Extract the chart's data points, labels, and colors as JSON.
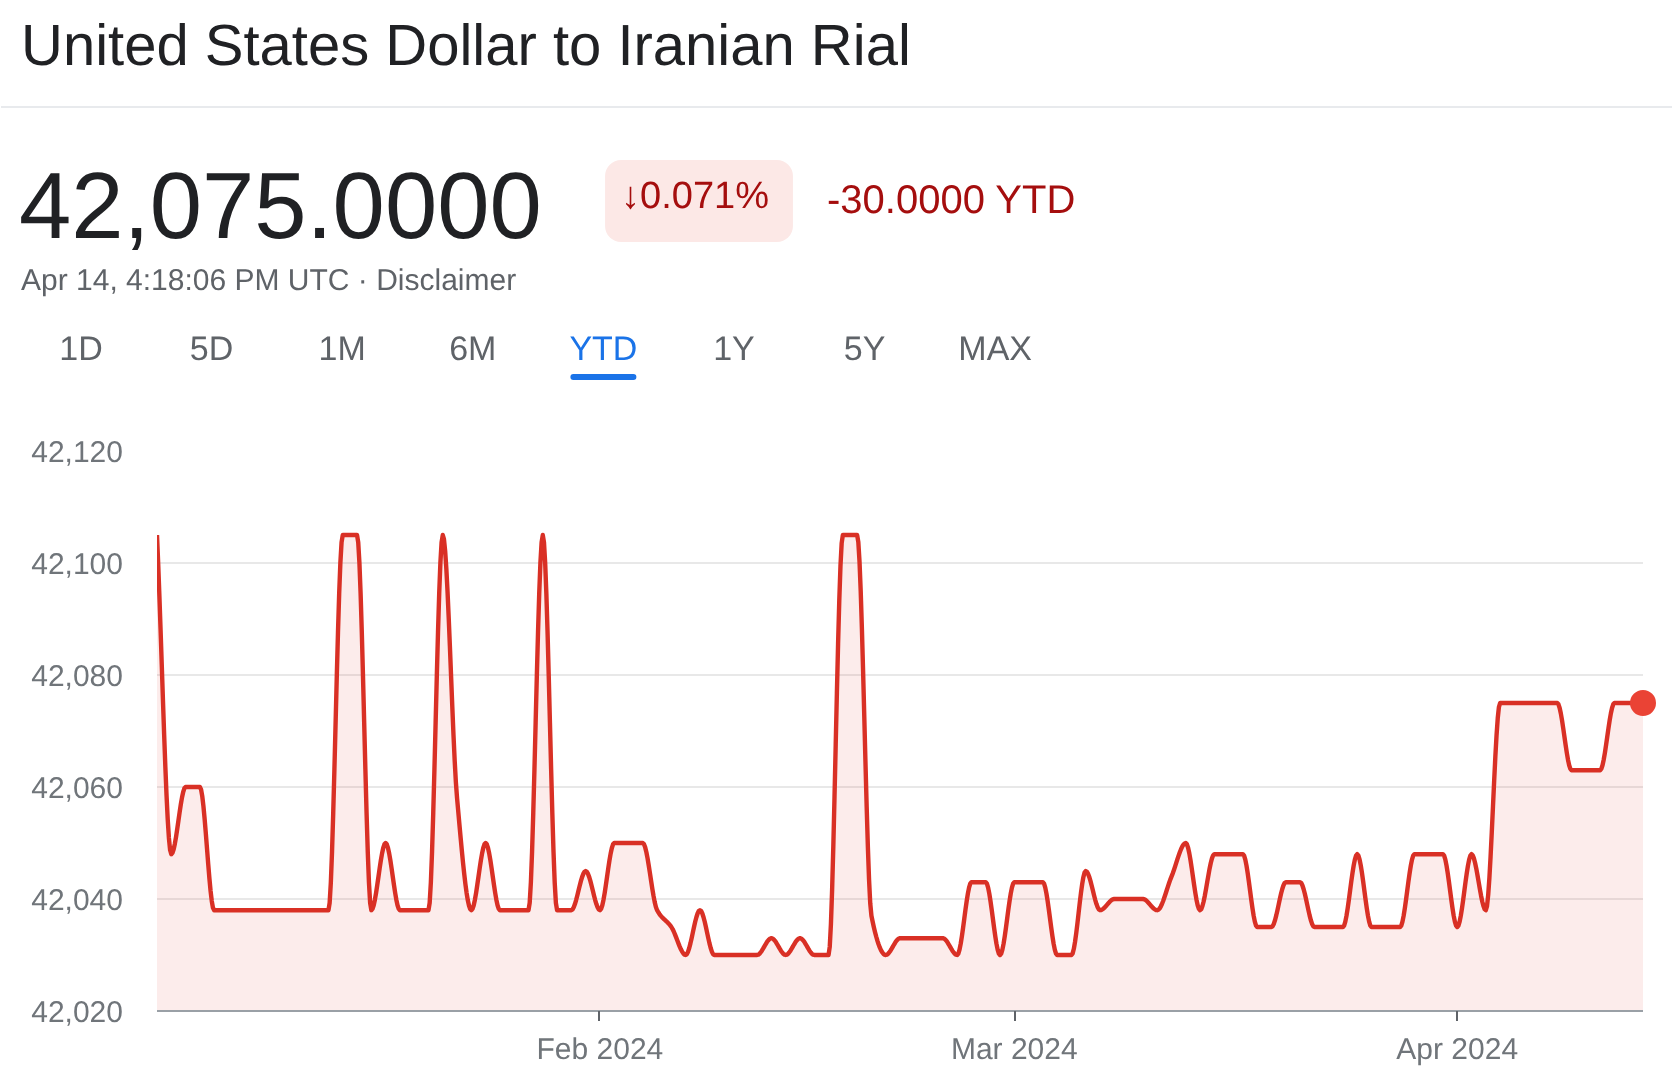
{
  "chart_data": {
    "type": "area",
    "title": "United States Dollar to Iranian Rial",
    "subtitle": "42,075.0000",
    "annotations": [
      "↓0.071%",
      "-30.0000 YTD",
      "Apr 14, 4:18:06 PM UTC · Disclaimer",
      "1D",
      "5D",
      "1M",
      "6M",
      "YTD",
      "1Y",
      "5Y",
      "MAX"
    ],
    "x": [
      "2024-01-01",
      "2024-01-02",
      "2024-01-03",
      "2024-01-04",
      "2024-01-05",
      "2024-01-13",
      "2024-01-14",
      "2024-01-15",
      "2024-01-16",
      "2024-01-17",
      "2024-01-18",
      "2024-01-20",
      "2024-01-21",
      "2024-01-22",
      "2024-01-23",
      "2024-01-24",
      "2024-01-25",
      "2024-01-27",
      "2024-01-28",
      "2024-01-29",
      "2024-01-30",
      "2024-01-31",
      "2024-02-01",
      "2024-02-02",
      "2024-02-04",
      "2024-02-05",
      "2024-02-06",
      "2024-02-07",
      "2024-02-08",
      "2024-02-09",
      "2024-02-12",
      "2024-02-13",
      "2024-02-14",
      "2024-02-15",
      "2024-02-16",
      "2024-02-17",
      "2024-02-18",
      "2024-02-19",
      "2024-02-20",
      "2024-02-21",
      "2024-02-22",
      "2024-02-25",
      "2024-02-26",
      "2024-02-27",
      "2024-02-28",
      "2024-02-29",
      "2024-03-01",
      "2024-03-03",
      "2024-03-04",
      "2024-03-05",
      "2024-03-06",
      "2024-03-07",
      "2024-03-08",
      "2024-03-10",
      "2024-03-11",
      "2024-03-12",
      "2024-03-13",
      "2024-03-14",
      "2024-03-15",
      "2024-03-17",
      "2024-03-18",
      "2024-03-19",
      "2024-03-20",
      "2024-03-21",
      "2024-03-22",
      "2024-03-24",
      "2024-03-25",
      "2024-03-26",
      "2024-03-28",
      "2024-03-29",
      "2024-03-31",
      "2024-04-01",
      "2024-04-02",
      "2024-04-03",
      "2024-04-04",
      "2024-04-08",
      "2024-04-09",
      "2024-04-11",
      "2024-04-12",
      "2024-04-14"
    ],
    "series": [
      {
        "color": "#d93025",
        "values": [
          42105,
          42048,
          42060,
          42060,
          42038,
          42038,
          42105,
          42105,
          42038,
          42050,
          42038,
          42038,
          42105,
          42058,
          42038,
          42050,
          42038,
          42038,
          42105,
          42038,
          42038,
          42045,
          42038,
          42050,
          42050,
          42038,
          42035,
          42030,
          42038,
          42030,
          42030,
          42033,
          42030,
          42033,
          42030,
          42030,
          42105,
          42105,
          42037,
          42030,
          42033,
          42033,
          42030,
          42043,
          42043,
          42030,
          42043,
          42043,
          42030,
          42030,
          42045,
          42038,
          42040,
          42040,
          42038,
          42044,
          42050,
          42038,
          42048,
          42048,
          42035,
          42035,
          42043,
          42043,
          42035,
          42035,
          42048,
          42035,
          42035,
          42048,
          42048,
          42035,
          42048,
          42038,
          42075,
          42075,
          42063,
          42063,
          42075,
          42075
        ]
      },
      {
        "type": "scatter",
        "marker": "circle",
        "color": "#ea4335",
        "x": [
          "2024-04-14"
        ],
        "values": [
          42075
        ]
      }
    ],
    "xlim": [
      "2024-01-01",
      "2024-04-14"
    ],
    "xticks": [
      {
        "value": "2024-02-01",
        "label": "Feb 2024"
      },
      {
        "value": "2024-03-01",
        "label": "Mar 2024"
      },
      {
        "value": "2024-04-01",
        "label": "Apr 2024"
      }
    ],
    "ylim": [
      42020,
      42120
    ],
    "yticks": [
      {
        "value": 42020,
        "label": "42,020"
      },
      {
        "value": 42040,
        "label": "42,040"
      },
      {
        "value": 42060,
        "label": "42,060"
      },
      {
        "value": 42080,
        "label": "42,080"
      },
      {
        "value": 42100,
        "label": "42,100"
      },
      {
        "value": 42120,
        "label": "42,120"
      }
    ],
    "grid": "y"
  }
}
